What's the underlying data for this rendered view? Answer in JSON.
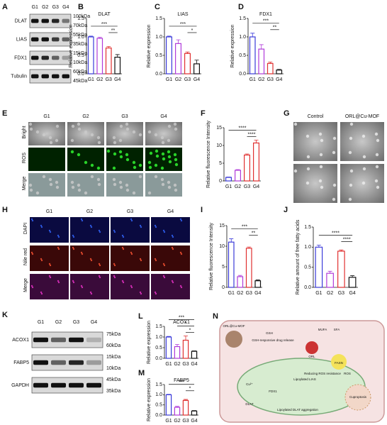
{
  "panel_letters": [
    "A",
    "B",
    "C",
    "D",
    "E",
    "F",
    "G",
    "H",
    "I",
    "J",
    "K",
    "L",
    "M",
    "N"
  ],
  "blots": [
    {
      "lanes": [
        "G1",
        "G2",
        "G3",
        "G4"
      ],
      "rows": [
        {
          "label": "DLAT",
          "markers": [
            "100kDa",
            "70kDa"
          ]
        },
        {
          "label": "LIAS",
          "markers": [
            "55kDa",
            "35kDa"
          ]
        },
        {
          "label": "FDX1",
          "markers": [
            "15kDa",
            "10kDa"
          ]
        },
        {
          "label": "Tubulin",
          "markers": [
            "60kDa",
            "45kDa"
          ]
        }
      ]
    },
    {
      "lanes": [
        "G1",
        "G2",
        "G3",
        "G4"
      ],
      "rows": [
        {
          "label": "ACOX1",
          "markers": [
            "75kDa",
            "60kDa"
          ]
        },
        {
          "label": "FABP5",
          "markers": [
            "15kDa",
            "10kDa"
          ]
        },
        {
          "label": "GAPDH",
          "markers": [
            "45kDa",
            "35kDa"
          ]
        }
      ]
    }
  ],
  "micrographs": [
    {
      "columns": [
        "G1",
        "G2",
        "G3",
        "G4"
      ],
      "rows": [
        "Bright",
        "ROS",
        "Merge"
      ]
    },
    {
      "columns": [
        "Control",
        "ORL@Cu-MOF"
      ]
    },
    {
      "columns": [
        "G1",
        "G2",
        "G3",
        "G4"
      ],
      "rows": [
        "DAPI",
        "Nile red",
        "Merge"
      ]
    }
  ],
  "diagram": {
    "labels": [
      "ORL@Cu-MOF",
      "GSH",
      "GSH-responsive drug release",
      "ORL",
      "MUFA",
      "SFA",
      "FASN",
      "Reducing ROS resistance",
      "ROS",
      "Cu²⁺",
      "FDX1",
      "Lipoylated LIAS",
      "DLAT",
      "Lipoylated DLAT aggregation",
      "Cuproptosis"
    ]
  },
  "chart_data": [
    {
      "type": "bar",
      "title": "DLAT",
      "ylabel": "Relative expression",
      "categories": [
        "G1",
        "G2",
        "G3",
        "G4"
      ],
      "values": [
        1.0,
        0.96,
        0.7,
        0.45
      ],
      "errors": [
        0.02,
        0.03,
        0.04,
        0.07
      ],
      "colors": [
        "#3b3bd9",
        "#b03bd9",
        "#e03030",
        "#111111"
      ],
      "ylim": [
        0,
        1.5
      ],
      "yticks": [
        {
          "value": 0,
          "label": "0.0"
        },
        {
          "value": 0.5,
          "label": "0.5"
        },
        {
          "value": 1,
          "label": "1.0"
        },
        {
          "value": 1.5,
          "label": "1.5"
        }
      ],
      "significance": [
        {
          "text": "***",
          "between": [
            "G1",
            "G4"
          ]
        },
        {
          "text": "**",
          "between": [
            "G3",
            "G4"
          ]
        }
      ]
    },
    {
      "type": "bar",
      "title": "LIAS",
      "ylabel": "Relative expression",
      "categories": [
        "G1",
        "G2",
        "G3",
        "G4"
      ],
      "values": [
        1.0,
        0.82,
        0.55,
        0.27
      ],
      "errors": [
        0.02,
        0.1,
        0.04,
        0.1
      ],
      "colors": [
        "#3b3bd9",
        "#b03bd9",
        "#e03030",
        "#111111"
      ],
      "ylim": [
        0,
        1.5
      ],
      "yticks": [
        {
          "value": 0,
          "label": "0.0"
        },
        {
          "value": 0.5,
          "label": "0.5"
        },
        {
          "value": 1,
          "label": "1.0"
        },
        {
          "value": 1.5,
          "label": "1.5"
        }
      ],
      "significance": [
        {
          "text": "***",
          "between": [
            "G1",
            "G4"
          ]
        },
        {
          "text": "*",
          "between": [
            "G3",
            "G4"
          ]
        }
      ]
    },
    {
      "type": "bar",
      "title": "FDX1",
      "ylabel": "Relative expression",
      "categories": [
        "G1",
        "G2",
        "G3",
        "G4"
      ],
      "values": [
        1.0,
        0.67,
        0.28,
        0.1
      ],
      "errors": [
        0.1,
        0.12,
        0.04,
        0.02
      ],
      "colors": [
        "#3b3bd9",
        "#b03bd9",
        "#e03030",
        "#111111"
      ],
      "ylim": [
        0,
        1.5
      ],
      "yticks": [
        {
          "value": 0,
          "label": "0.0"
        },
        {
          "value": 0.5,
          "label": "0.5"
        },
        {
          "value": 1,
          "label": "1.0"
        },
        {
          "value": 1.5,
          "label": "1.5"
        }
      ],
      "significance": [
        {
          "text": "***",
          "between": [
            "G1",
            "G4"
          ]
        },
        {
          "text": "**",
          "between": [
            "G3",
            "G4"
          ]
        }
      ]
    },
    {
      "type": "bar",
      "ylabel": "Relative fluorescence Intensity",
      "categories": [
        "G1",
        "G2",
        "G3",
        "G4"
      ],
      "values": [
        1,
        3,
        7.3,
        10.7
      ],
      "errors": [
        0.1,
        0.2,
        0.3,
        0.8
      ],
      "colors": [
        "#3b3bd9",
        "#b03bd9",
        "#e03030",
        "#e03030"
      ],
      "ylim": [
        0,
        15
      ],
      "yticks": [
        0,
        5,
        10,
        15
      ],
      "significance": [
        {
          "text": "****",
          "between": [
            "G1",
            "G4"
          ]
        },
        {
          "text": "****",
          "between": [
            "G3",
            "G4"
          ]
        }
      ]
    },
    {
      "type": "bar",
      "ylabel": "Relative fluorescence Intensity",
      "categories": [
        "G1",
        "G2",
        "G3",
        "G4"
      ],
      "values": [
        11,
        2.6,
        9.5,
        1.6
      ],
      "errors": [
        0.8,
        0.3,
        0.3,
        0.2
      ],
      "colors": [
        "#3b3bd9",
        "#b03bd9",
        "#e03030",
        "#111111"
      ],
      "ylim": [
        0,
        15
      ],
      "yticks": [
        0,
        5,
        10,
        15
      ],
      "significance": [
        {
          "text": "***",
          "between": [
            "G1",
            "G4"
          ]
        },
        {
          "text": "**",
          "between": [
            "G3",
            "G4"
          ]
        }
      ]
    },
    {
      "type": "bar",
      "ylabel": "Relative amount of free fatty acids",
      "categories": [
        "G1",
        "G2",
        "G3",
        "G4"
      ],
      "values": [
        1.0,
        0.35,
        0.9,
        0.25
      ],
      "errors": [
        0.05,
        0.05,
        0.03,
        0.04
      ],
      "colors": [
        "#3b3bd9",
        "#b03bd9",
        "#e03030",
        "#111111"
      ],
      "ylim": [
        0,
        1.5
      ],
      "yticks": [
        {
          "value": 0,
          "label": "0.0"
        },
        {
          "value": 0.5,
          "label": "0.5"
        },
        {
          "value": 1,
          "label": "1.0"
        },
        {
          "value": 1.5,
          "label": "1.5"
        }
      ],
      "significance": [
        {
          "text": "****",
          "between": [
            "G1",
            "G4"
          ]
        },
        {
          "text": "****",
          "between": [
            "G3",
            "G4"
          ]
        }
      ]
    },
    {
      "type": "bar",
      "title": "ACOX1",
      "ylabel": "Relative expression",
      "categories": [
        "G1",
        "G2",
        "G3",
        "G4"
      ],
      "values": [
        1.0,
        0.55,
        0.85,
        0.33
      ],
      "errors": [
        0.03,
        0.1,
        0.2,
        0.02
      ],
      "colors": [
        "#3b3bd9",
        "#b03bd9",
        "#e03030",
        "#111111"
      ],
      "ylim": [
        0,
        1.5
      ],
      "yticks": [
        {
          "value": 0,
          "label": "0.0"
        },
        {
          "value": 0.5,
          "label": "0.5"
        },
        {
          "value": 1,
          "label": "1.0"
        },
        {
          "value": 1.5,
          "label": "1.5"
        }
      ],
      "significance": [
        {
          "text": "***",
          "between": [
            "G1",
            "G4"
          ]
        },
        {
          "text": "*",
          "between": [
            "G2",
            "G4"
          ]
        },
        {
          "text": "*",
          "between": [
            "G3",
            "G4"
          ]
        }
      ]
    },
    {
      "type": "bar",
      "title": "FABP5",
      "ylabel": "Relative expression",
      "categories": [
        "G1",
        "G2",
        "G3",
        "G4"
      ],
      "values": [
        1.0,
        0.38,
        0.72,
        0.2
      ],
      "errors": [
        0.02,
        0.05,
        0.05,
        0.02
      ],
      "colors": [
        "#3b3bd9",
        "#b03bd9",
        "#e03030",
        "#111111"
      ],
      "ylim": [
        0,
        1.5
      ],
      "yticks": [
        {
          "value": 0,
          "label": "0.0"
        },
        {
          "value": 0.5,
          "label": "0.5"
        },
        {
          "value": 1,
          "label": "1.0"
        },
        {
          "value": 1.5,
          "label": "1.5"
        }
      ],
      "significance": [
        {
          "text": "***",
          "between": [
            "G1",
            "G4"
          ]
        },
        {
          "text": "*",
          "between": [
            "G3",
            "G4"
          ]
        }
      ]
    }
  ]
}
